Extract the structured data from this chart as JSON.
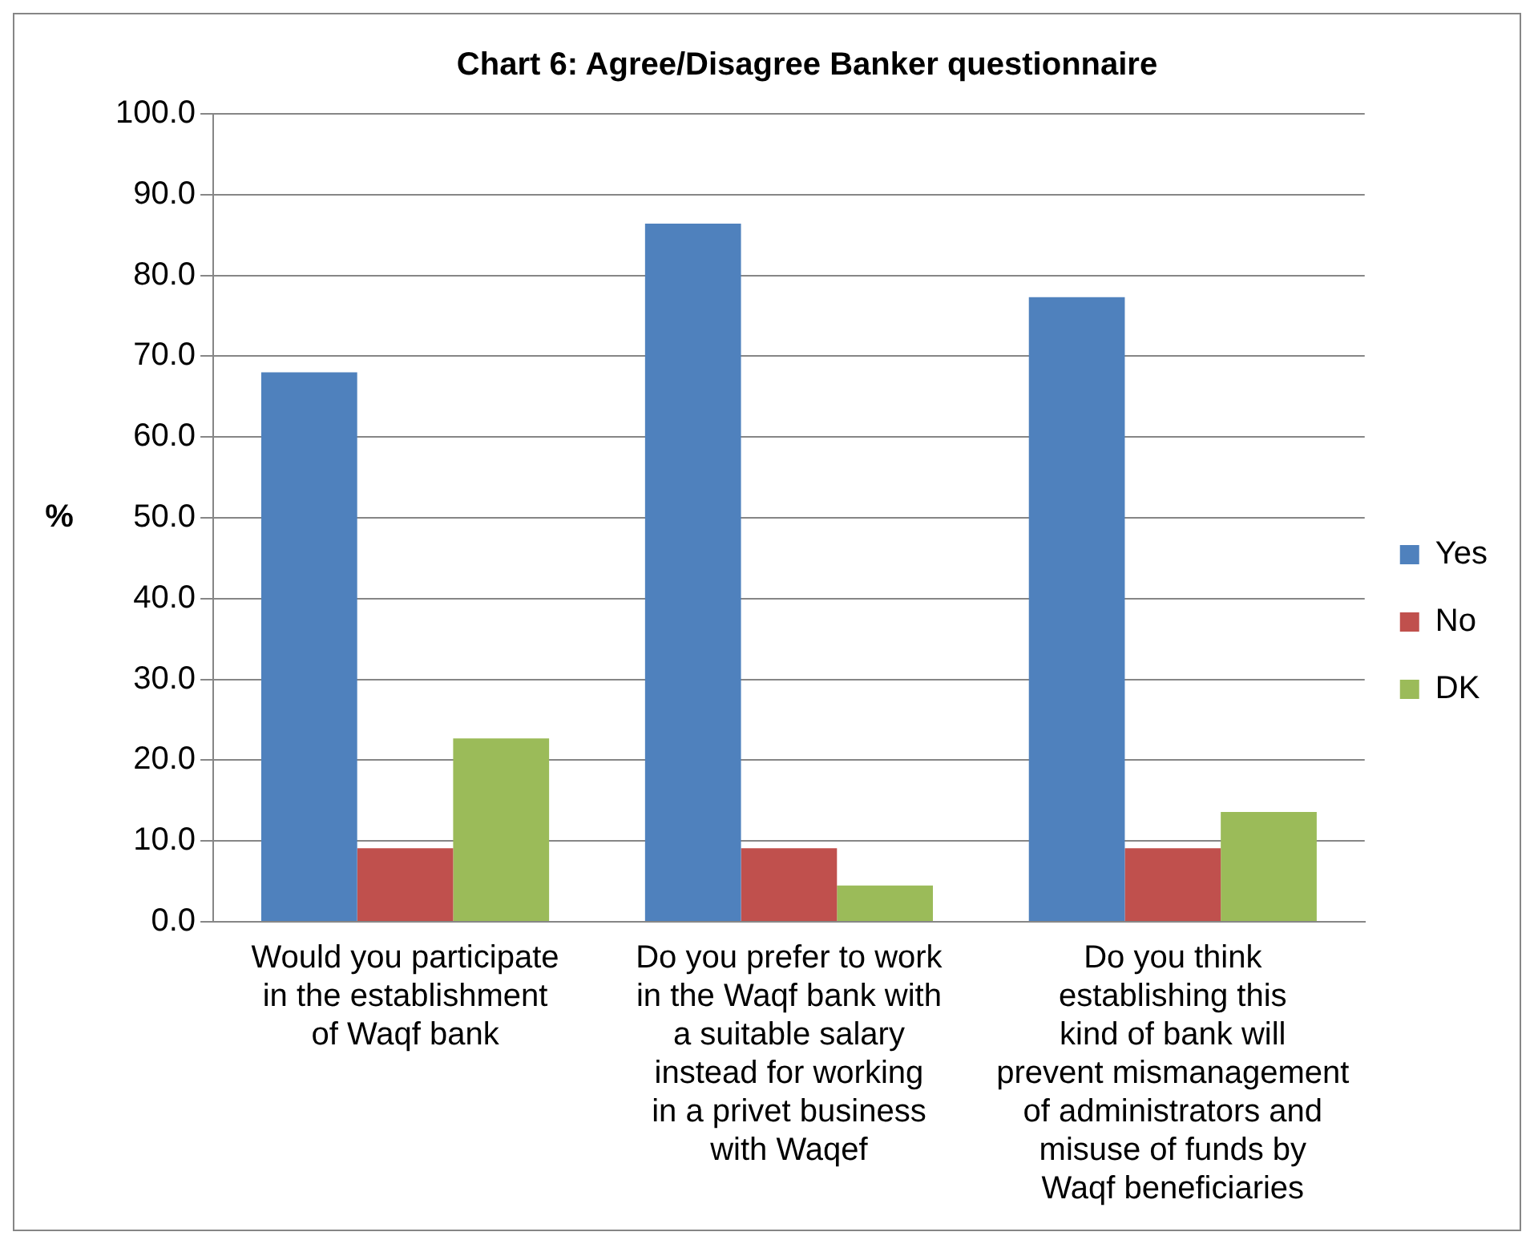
{
  "chart_data": {
    "type": "bar",
    "title": "Chart 6: Agree/Disagree Banker questionnaire",
    "ylabel": "%",
    "categories": [
      "Would you participate in the establishment of Waqf bank",
      "Do you prefer to work in the Waqf bank with a suitable salary instead for working in a privet business with Waqef",
      "Do you think establishing this kind of bank will prevent mismanagement of administrators and misuse of funds by Waqf beneficiaries"
    ],
    "series": [
      {
        "name": "Yes",
        "color": "#4f81bd",
        "values": [
          68.0,
          86.4,
          77.3
        ]
      },
      {
        "name": "No",
        "color": "#c0504d",
        "values": [
          9.1,
          9.1,
          9.1
        ]
      },
      {
        "name": "DK",
        "color": "#9bbb59",
        "values": [
          22.7,
          4.5,
          13.6
        ]
      }
    ],
    "ylim": [
      0,
      100
    ],
    "yticks": [
      {
        "value": 0,
        "label": "0.0"
      },
      {
        "value": 10,
        "label": "10.0"
      },
      {
        "value": 20,
        "label": "20.0"
      },
      {
        "value": 30,
        "label": "30.0"
      },
      {
        "value": 40,
        "label": "40.0"
      },
      {
        "value": 50,
        "label": "50.0"
      },
      {
        "value": 60,
        "label": "60.0"
      },
      {
        "value": 70,
        "label": "70.0"
      },
      {
        "value": 80,
        "label": "80.0"
      },
      {
        "value": 90,
        "label": "90.0"
      },
      {
        "value": 100,
        "label": "100.0"
      }
    ],
    "grid": "y",
    "legend": "right"
  }
}
